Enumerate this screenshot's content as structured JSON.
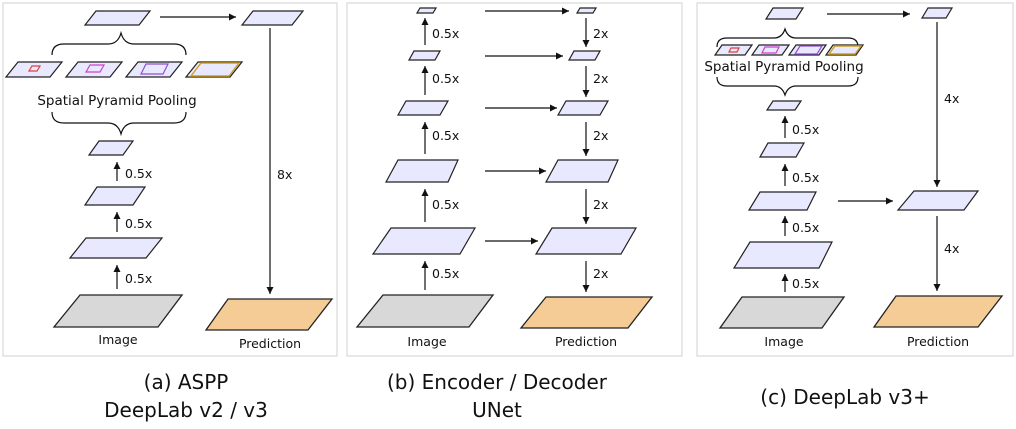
{
  "panels": {
    "a": {
      "caption_line1": "(a) ASPP",
      "caption_line2": "DeepLab v2 / v3",
      "spp_label": "Spatial Pyramid Pooling",
      "image_label": "Image",
      "prediction_label": "Prediction",
      "scale_labels": [
        "0.5x",
        "0.5x",
        "0.5x"
      ],
      "upsample_label": "8x"
    },
    "b": {
      "caption_line1": "(b) Encoder / Decoder",
      "caption_line2": "UNet",
      "image_label": "Image",
      "prediction_label": "Prediction",
      "encoder_labels": [
        "0.5x",
        "0.5x",
        "0.5x",
        "0.5x",
        "0.5x"
      ],
      "decoder_labels": [
        "2x",
        "2x",
        "2x",
        "2x",
        "2x"
      ]
    },
    "c": {
      "caption_line1": "(c) DeepLab v3+",
      "spp_label": "Spatial Pyramid Pooling",
      "image_label": "Image",
      "prediction_label": "Prediction",
      "encoder_labels": [
        "0.5x",
        "0.5x",
        "0.5x",
        "0.5x"
      ],
      "upsample_labels": [
        "4x",
        "4x"
      ]
    }
  },
  "colors": {
    "feature_map": "#e8e8ff",
    "image": "#d8d8d8",
    "prediction": "#f6cc96",
    "pool_red": "#e04040",
    "pool_magenta": "#d040d0",
    "pool_purple": "#9050d0",
    "pool_orange": "#d0a020"
  }
}
